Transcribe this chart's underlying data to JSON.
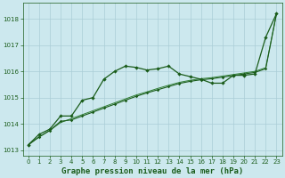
{
  "title": "Graphe pression niveau de la mer (hPa)",
  "background_color": "#cce8ee",
  "grid_color": "#aacdd6",
  "line_color_dark": "#1a5c1a",
  "line_color_med": "#2e7d32",
  "xlim": [
    -0.5,
    23.5
  ],
  "ylim": [
    1012.8,
    1018.6
  ],
  "yticks": [
    1013,
    1014,
    1015,
    1016,
    1017,
    1018
  ],
  "xticks": [
    0,
    1,
    2,
    3,
    4,
    5,
    6,
    7,
    8,
    9,
    10,
    11,
    12,
    13,
    14,
    15,
    16,
    17,
    18,
    19,
    20,
    21,
    22,
    23
  ],
  "series1_x": [
    0,
    1,
    2,
    3,
    4,
    5,
    6,
    7,
    8,
    9,
    10,
    11,
    12,
    13,
    14,
    15,
    16,
    17,
    18,
    19,
    20,
    21,
    22,
    23
  ],
  "series1_y": [
    1013.2,
    1013.6,
    1013.8,
    1014.3,
    1014.3,
    1014.9,
    1015.0,
    1015.7,
    1016.0,
    1016.2,
    1016.15,
    1016.05,
    1016.1,
    1016.2,
    1015.9,
    1015.8,
    1015.7,
    1015.55,
    1015.55,
    1015.85,
    1015.85,
    1015.9,
    1017.3,
    1018.2
  ],
  "series2_x": [
    0,
    1,
    2,
    3,
    4,
    5,
    6,
    7,
    8,
    9,
    10,
    11,
    12,
    13,
    14,
    15,
    16,
    17,
    18,
    19,
    20,
    21,
    22,
    23
  ],
  "series2_y": [
    1013.2,
    1013.5,
    1013.75,
    1014.1,
    1014.15,
    1014.3,
    1014.45,
    1014.6,
    1014.75,
    1014.9,
    1015.05,
    1015.18,
    1015.3,
    1015.42,
    1015.54,
    1015.62,
    1015.68,
    1015.72,
    1015.78,
    1015.84,
    1015.9,
    1015.96,
    1016.1,
    1018.2
  ],
  "series3_x": [
    0,
    1,
    2,
    3,
    4,
    5,
    6,
    7,
    8,
    9,
    10,
    11,
    12,
    13,
    14,
    15,
    16,
    17,
    18,
    19,
    20,
    21,
    22,
    23
  ],
  "series3_y": [
    1013.2,
    1013.5,
    1013.75,
    1014.05,
    1014.2,
    1014.35,
    1014.5,
    1014.65,
    1014.8,
    1014.95,
    1015.1,
    1015.22,
    1015.35,
    1015.47,
    1015.58,
    1015.66,
    1015.72,
    1015.76,
    1015.82,
    1015.88,
    1015.94,
    1016.0,
    1016.14,
    1018.2
  ],
  "xlabel_fontsize": 6.5,
  "tick_fontsize": 5.0
}
